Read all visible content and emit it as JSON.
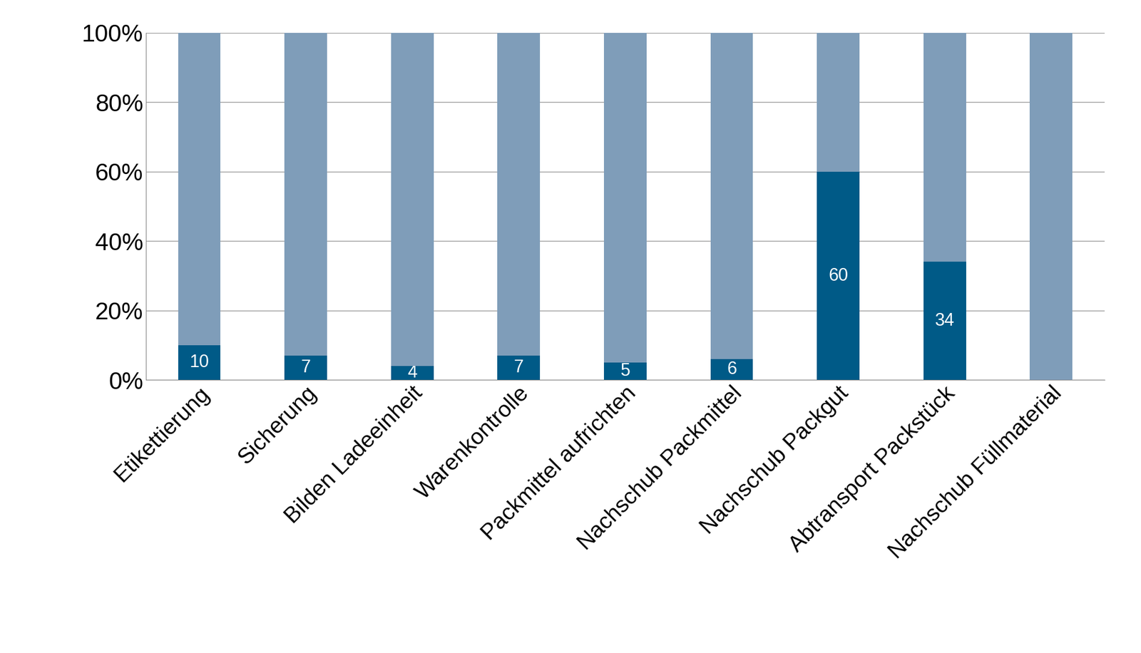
{
  "chart_data": {
    "type": "bar",
    "stacked": true,
    "grid": true,
    "categories": [
      "Etikettierung",
      "Sicherung",
      "Bilden Ladeeinheit",
      "Warenkontrolle",
      "Packmittel aufrichten",
      "Nachschub Packmittel",
      "Nachschub Packgut",
      "Abtransport Packstück",
      "Nachschub Füllmaterial"
    ],
    "series": [
      {
        "color": "#005a87",
        "data_labels": true,
        "values": [
          10,
          7,
          4,
          7,
          5,
          6,
          60,
          34,
          null
        ]
      },
      {
        "color": "#7f9db9",
        "values": [
          90,
          93,
          96,
          93,
          95,
          94,
          40,
          66,
          100
        ]
      }
    ],
    "ylim": [
      0,
      100
    ],
    "yticks": [
      {
        "value": 0,
        "label": "0%"
      },
      {
        "value": 20,
        "label": "20%"
      },
      {
        "value": 40,
        "label": "40%"
      },
      {
        "value": 60,
        "label": "60%"
      },
      {
        "value": 80,
        "label": "80%"
      },
      {
        "value": 100,
        "label": "100%"
      }
    ]
  }
}
